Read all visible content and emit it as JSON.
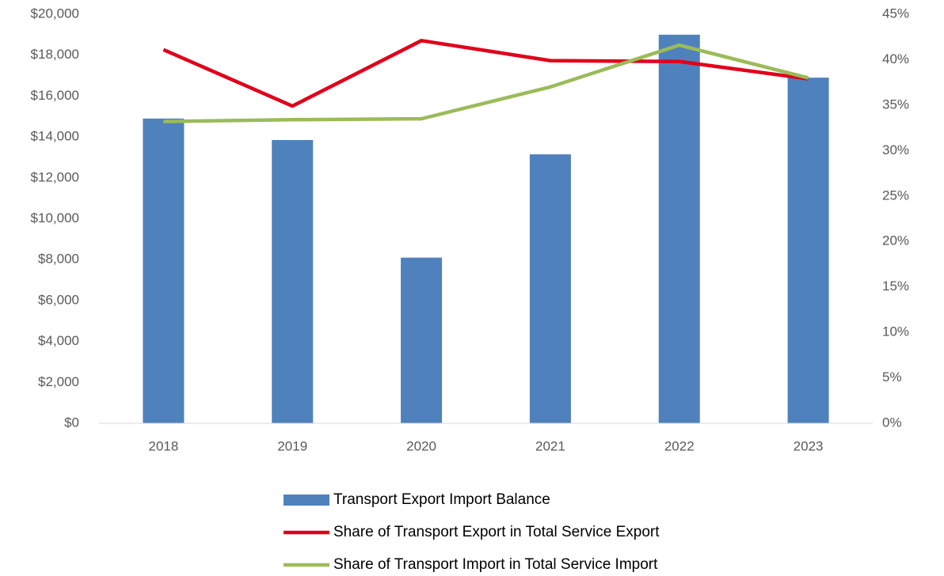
{
  "chart_data": {
    "type": "bar",
    "categories": [
      "2018",
      "2019",
      "2020",
      "2021",
      "2022",
      "2023"
    ],
    "series": [
      {
        "name": "Transport Export Import Balance",
        "color": "#4f81bd",
        "values": [
          14900,
          13850,
          8100,
          13150,
          19000,
          16900
        ]
      },
      {
        "name": "Share of Transport Export in Total Service Export",
        "color": "#e0001b",
        "type": "line",
        "axis": "y2",
        "values": [
          41.1,
          34.9,
          42.1,
          39.9,
          39.8,
          37.9
        ]
      },
      {
        "name": "Share of Transport Import in Total Service Import",
        "color": "#9bbb59",
        "type": "line",
        "axis": "y2",
        "values": [
          33.2,
          33.4,
          33.5,
          37.0,
          41.6,
          38.0
        ]
      }
    ],
    "ylim": [
      0,
      20000
    ],
    "yticks": [
      {
        "value": 0,
        "label": "$0"
      },
      {
        "value": 2000,
        "label": "$2,000"
      },
      {
        "value": 4000,
        "label": "$4,000"
      },
      {
        "value": 6000,
        "label": "$6,000"
      },
      {
        "value": 8000,
        "label": "$8,000"
      },
      {
        "value": 10000,
        "label": "$10,000"
      },
      {
        "value": 12000,
        "label": "$12,000"
      },
      {
        "value": 14000,
        "label": "$14,000"
      },
      {
        "value": 16000,
        "label": "$16,000"
      },
      {
        "value": 18000,
        "label": "$18,000"
      },
      {
        "value": 20000,
        "label": "$20,000"
      }
    ],
    "y2lim": [
      0,
      45
    ],
    "y2ticks": [
      {
        "value": 0,
        "label": "0%"
      },
      {
        "value": 5,
        "label": "5%"
      },
      {
        "value": 10,
        "label": "10%"
      },
      {
        "value": 15,
        "label": "15%"
      },
      {
        "value": 20,
        "label": "20%"
      },
      {
        "value": 25,
        "label": "25%"
      },
      {
        "value": 30,
        "label": "30%"
      },
      {
        "value": 35,
        "label": "35%"
      },
      {
        "value": 40,
        "label": "40%"
      },
      {
        "value": 45,
        "label": "45%"
      }
    ],
    "grid": false,
    "legend": "bottom"
  }
}
